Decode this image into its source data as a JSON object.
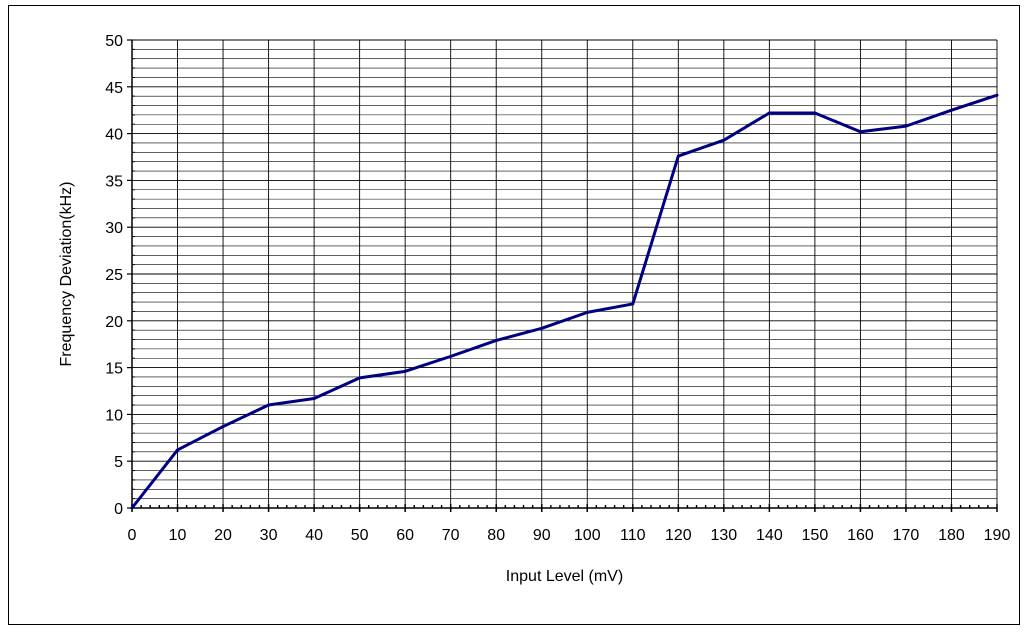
{
  "chart_data": {
    "type": "line",
    "title": "",
    "xlabel": "Input Level (mV)",
    "ylabel": "Frequency Deviation(kHz)",
    "xlim": [
      0,
      190
    ],
    "ylim": [
      0,
      50
    ],
    "x_ticks": [
      0,
      10,
      20,
      30,
      40,
      50,
      60,
      70,
      80,
      90,
      100,
      110,
      120,
      130,
      140,
      150,
      160,
      170,
      180,
      190
    ],
    "y_ticks": [
      0,
      5,
      10,
      15,
      20,
      25,
      30,
      35,
      40,
      45,
      50
    ],
    "grid": true,
    "series": [
      {
        "color": "#000080",
        "x": [
          0,
          10,
          20,
          30,
          40,
          50,
          60,
          70,
          80,
          90,
          100,
          110,
          120,
          130,
          140,
          150,
          160,
          170,
          180,
          190
        ],
        "y": [
          0,
          6.2,
          8.7,
          11.0,
          11.7,
          13.9,
          14.6,
          16.2,
          17.9,
          19.2,
          20.9,
          21.8,
          37.6,
          39.3,
          42.2,
          42.2,
          40.2,
          40.8,
          42.5,
          44.1
        ]
      }
    ]
  }
}
